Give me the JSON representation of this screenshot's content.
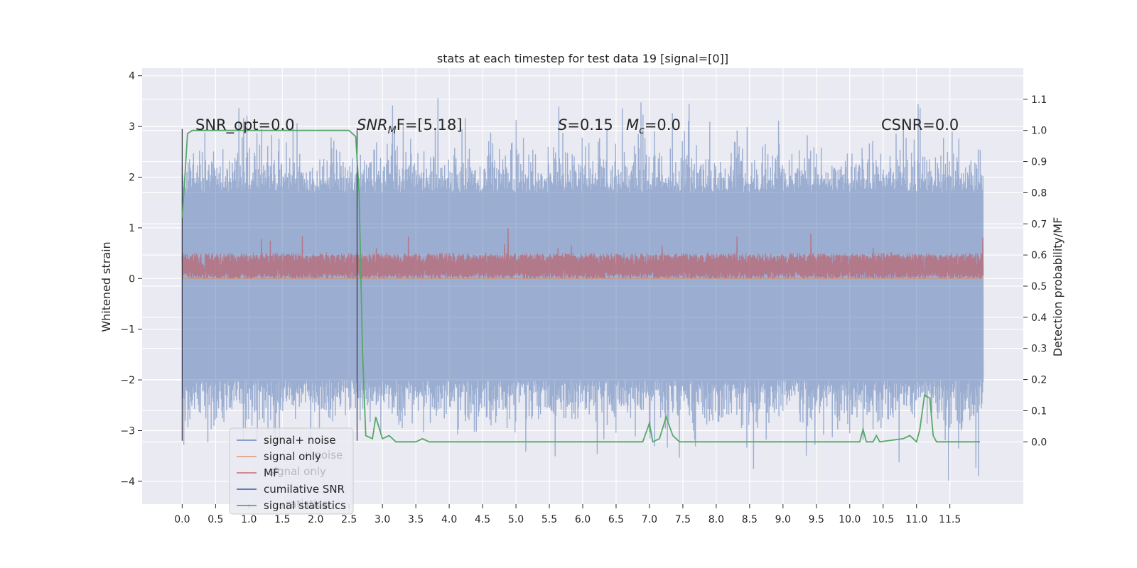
{
  "chart_data": {
    "type": "line",
    "title": "stats at each timestep for test data 19 [signal=[0]]",
    "ylabel_left": "Whitened strain",
    "ylabel_right": "Detection probability/MF",
    "xlim": [
      -0.6,
      12.6
    ],
    "ylim_left": [
      -4.45,
      4.15
    ],
    "ylim_right": [
      -0.2,
      1.2
    ],
    "x_ticks": [
      "0.0",
      "0.5",
      "1.0",
      "1.5",
      "2.0",
      "2.5",
      "3.0",
      "3.5",
      "4.0",
      "4.5",
      "5.0",
      "5.5",
      "6.0",
      "6.5",
      "7.0",
      "7.5",
      "8.0",
      "8.5",
      "9.0",
      "9.5",
      "10.0",
      "10.5",
      "11.0",
      "11.5"
    ],
    "y_ticks_left": [
      "-4",
      "-3",
      "-2",
      "-1",
      "0",
      "1",
      "2",
      "3",
      "4"
    ],
    "y_ticks_right": [
      "0.0",
      "0.1",
      "0.2",
      "0.3",
      "0.4",
      "0.5",
      "0.6",
      "0.7",
      "0.8",
      "0.9",
      "1.0",
      "1.1"
    ],
    "annotations": {
      "snr_opt": "SNR_opt=0.0",
      "snr_mf_pre": "SNR",
      "snr_mf_sub": "M",
      "snr_mf_post": "F=[5.18]",
      "s_stat_var": "S",
      "s_stat_val": "=0.15",
      "mc_var": "M",
      "mc_sub": "c",
      "mc_val": "=0.0",
      "csnr": "CSNR=0.0"
    },
    "series": [
      {
        "name": "signal+ noise",
        "color": "#4c72b0",
        "kind": "noise",
        "x_range": [
          0.0,
          12.0
        ],
        "envelope_left": [
          -2.0,
          1.7
        ],
        "spike_max": 3.6,
        "spike_min": -4.0
      },
      {
        "name": "signal only",
        "color": "#dd8452",
        "kind": "flat",
        "x_range": [
          0.0,
          12.0
        ],
        "value_left": 0.0
      },
      {
        "name": "MF",
        "color": "#c44e52",
        "kind": "noise_band",
        "x_range": [
          0.0,
          12.0
        ],
        "envelope_left": [
          0.0,
          0.5
        ],
        "spike_max": 1.0
      },
      {
        "name": "cumilative SNR",
        "color": "#4c72b0",
        "kind": "vline",
        "x": [
          0.0,
          2.62
        ],
        "y_left": [
          -3.2,
          2.95
        ]
      },
      {
        "name": "signal statistics",
        "color": "#55a868",
        "kind": "line",
        "axis": "right",
        "points": [
          [
            0.0,
            0.72
          ],
          [
            0.04,
            0.85
          ],
          [
            0.08,
            0.99
          ],
          [
            0.15,
            1.0
          ],
          [
            2.5,
            1.0
          ],
          [
            2.6,
            0.98
          ],
          [
            2.65,
            0.8
          ],
          [
            2.7,
            0.3
          ],
          [
            2.75,
            0.02
          ],
          [
            2.85,
            0.01
          ],
          [
            2.9,
            0.08
          ],
          [
            3.0,
            0.01
          ],
          [
            3.1,
            0.02
          ],
          [
            3.2,
            0.0
          ],
          [
            3.5,
            0.0
          ],
          [
            3.6,
            0.01
          ],
          [
            3.7,
            0.0
          ],
          [
            6.9,
            0.0
          ],
          [
            7.0,
            0.06
          ],
          [
            7.05,
            0.0
          ],
          [
            7.15,
            0.01
          ],
          [
            7.25,
            0.08
          ],
          [
            7.35,
            0.02
          ],
          [
            7.45,
            0.0
          ],
          [
            10.15,
            0.0
          ],
          [
            10.2,
            0.04
          ],
          [
            10.25,
            0.0
          ],
          [
            10.35,
            0.0
          ],
          [
            10.4,
            0.02
          ],
          [
            10.45,
            0.0
          ],
          [
            10.8,
            0.01
          ],
          [
            10.9,
            0.02
          ],
          [
            11.0,
            0.0
          ],
          [
            11.05,
            0.04
          ],
          [
            11.12,
            0.15
          ],
          [
            11.2,
            0.14
          ],
          [
            11.25,
            0.02
          ],
          [
            11.3,
            0.0
          ],
          [
            11.95,
            0.0
          ]
        ]
      }
    ],
    "legend_entries": [
      {
        "label": "signal+ noise",
        "color": "#4c72b0"
      },
      {
        "label": "signal only",
        "color": "#dd8452"
      },
      {
        "label": "MF",
        "color": "#c44e52"
      },
      {
        "label": "cumilative SNR",
        "color": "#4c72b0"
      },
      {
        "label": "signal statistics",
        "color": "#55a868"
      }
    ],
    "legend_ghost": [
      "+ noise",
      "signal only",
      "ratistics"
    ],
    "legend_location": "lower-left",
    "grid": true,
    "background": "#eaeaf2"
  }
}
